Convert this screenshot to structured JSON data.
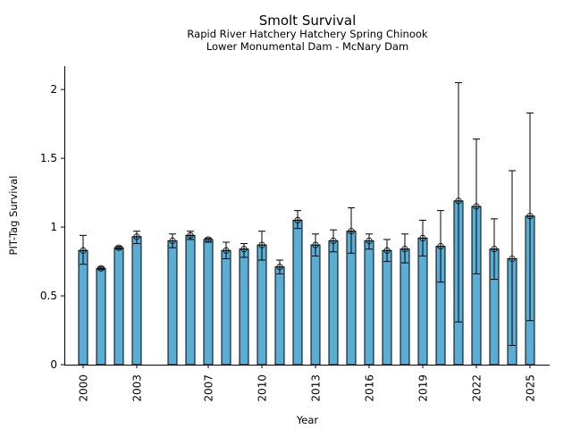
{
  "chart_data": {
    "type": "bar",
    "title": "Smolt Survival",
    "subtitle_lines": [
      "Rapid River Hatchery Hatchery Spring Chinook",
      "Lower Monumental Dam - McNary Dam"
    ],
    "xlabel": "Year",
    "ylabel": "PIT-Tag Survival",
    "xlim": [
      1998.95,
      2026.1
    ],
    "ylim": [
      0,
      2.17
    ],
    "x_ticks": [
      2000,
      2003,
      2007,
      2010,
      2013,
      2016,
      2019,
      2022,
      2025
    ],
    "y_ticks": [
      0,
      0.5,
      1,
      1.5,
      2
    ],
    "y_tick_labels": [
      "0",
      "0.5",
      "1",
      "1.5",
      "2"
    ],
    "bar_color": "#5aaed6",
    "grid": false,
    "series": [
      {
        "name": "PIT-Tag Survival",
        "points": [
          {
            "year": 2000,
            "value": 0.83,
            "lower": 0.73,
            "upper": 0.94
          },
          {
            "year": 2001,
            "value": 0.7,
            "lower": 0.69,
            "upper": 0.71
          },
          {
            "year": 2002,
            "value": 0.85,
            "lower": 0.84,
            "upper": 0.86
          },
          {
            "year": 2003,
            "value": 0.93,
            "lower": 0.88,
            "upper": 0.97
          },
          {
            "year": 2005,
            "value": 0.9,
            "lower": 0.85,
            "upper": 0.95
          },
          {
            "year": 2006,
            "value": 0.94,
            "lower": 0.91,
            "upper": 0.97
          },
          {
            "year": 2007,
            "value": 0.91,
            "lower": 0.89,
            "upper": 0.92
          },
          {
            "year": 2008,
            "value": 0.83,
            "lower": 0.77,
            "upper": 0.89
          },
          {
            "year": 2009,
            "value": 0.84,
            "lower": 0.78,
            "upper": 0.88
          },
          {
            "year": 2010,
            "value": 0.87,
            "lower": 0.76,
            "upper": 0.97
          },
          {
            "year": 2011,
            "value": 0.71,
            "lower": 0.66,
            "upper": 0.76
          },
          {
            "year": 2012,
            "value": 1.05,
            "lower": 0.99,
            "upper": 1.12
          },
          {
            "year": 2013,
            "value": 0.87,
            "lower": 0.79,
            "upper": 0.95
          },
          {
            "year": 2014,
            "value": 0.9,
            "lower": 0.82,
            "upper": 0.98
          },
          {
            "year": 2015,
            "value": 0.97,
            "lower": 0.81,
            "upper": 1.14
          },
          {
            "year": 2016,
            "value": 0.9,
            "lower": 0.84,
            "upper": 0.95
          },
          {
            "year": 2017,
            "value": 0.83,
            "lower": 0.75,
            "upper": 0.91
          },
          {
            "year": 2018,
            "value": 0.84,
            "lower": 0.74,
            "upper": 0.95
          },
          {
            "year": 2019,
            "value": 0.92,
            "lower": 0.79,
            "upper": 1.05
          },
          {
            "year": 2020,
            "value": 0.86,
            "lower": 0.6,
            "upper": 1.12
          },
          {
            "year": 2021,
            "value": 1.19,
            "lower": 0.31,
            "upper": 2.05
          },
          {
            "year": 2022,
            "value": 1.15,
            "lower": 0.66,
            "upper": 1.64
          },
          {
            "year": 2023,
            "value": 0.84,
            "lower": 0.62,
            "upper": 1.06
          },
          {
            "year": 2024,
            "value": 0.77,
            "lower": 0.14,
            "upper": 1.41
          },
          {
            "year": 2025,
            "value": 1.08,
            "lower": 0.32,
            "upper": 1.83
          }
        ]
      }
    ]
  }
}
